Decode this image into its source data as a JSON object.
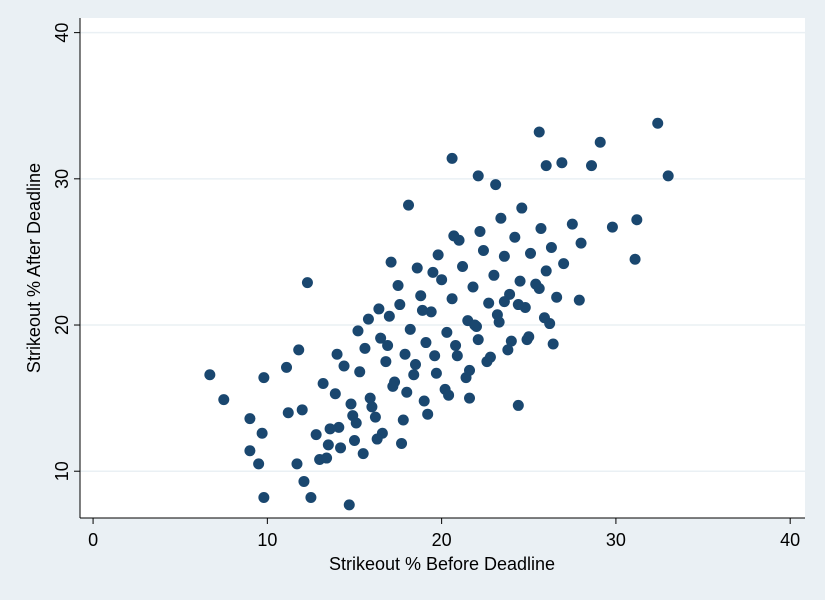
{
  "chart_data": {
    "type": "scatter",
    "x_label": "Strikeout % Before Deadline",
    "y_label": "Strikeout % After Deadline",
    "color": "#1a476f",
    "xlim": [
      -0.75,
      40.85
    ],
    "ylim": [
      6.8,
      41
    ],
    "xticks": [
      0,
      10,
      20,
      30,
      40
    ],
    "yticks": [
      10,
      20,
      30,
      40
    ],
    "grid": true,
    "x": [
      6.7,
      7.5,
      9.0,
      9.0,
      9.8,
      9.7,
      9.5,
      9.8,
      11.1,
      11.2,
      11.8,
      11.7,
      12.3,
      12.5,
      14.7,
      12.1,
      20.6,
      18.1,
      25.6,
      29.1,
      32.4,
      33.0,
      31.2,
      29.8,
      31.1,
      26.4,
      24.4,
      21.6,
      27.9,
      26.9,
      26.0,
      28.6,
      23.1,
      22.1,
      12.0,
      12.8,
      13.2,
      13.5,
      13.9,
      14.1,
      14.4,
      14.8,
      15.0,
      15.3,
      15.6,
      15.9,
      16.2,
      16.5,
      16.8,
      17.0,
      17.3,
      17.6,
      17.9,
      18.2,
      18.5,
      18.8,
      19.1,
      19.4,
      19.7,
      20.0,
      20.3,
      20.6,
      20.9,
      21.2,
      21.5,
      21.8,
      22.1,
      22.4,
      22.7,
      23.0,
      23.3,
      23.6,
      23.9,
      24.2,
      24.5,
      24.8,
      25.1,
      25.4,
      25.7,
      26.0,
      26.3,
      26.6,
      27.0,
      27.5,
      28.0,
      13.0,
      13.6,
      14.2,
      14.9,
      15.5,
      16.0,
      16.6,
      17.2,
      17.8,
      18.4,
      19.0,
      19.6,
      20.2,
      20.8,
      21.4,
      22.0,
      22.6,
      23.2,
      23.8,
      24.4,
      25.0,
      25.6,
      26.2,
      14.0,
      15.2,
      16.4,
      17.5,
      18.6,
      19.8,
      21.0,
      22.2,
      23.4,
      24.6,
      15.8,
      16.9,
      18.0,
      19.2,
      20.4,
      21.6,
      22.8,
      24.0,
      16.3,
      17.7,
      19.5,
      20.7,
      18.9,
      21.9,
      23.6,
      17.1,
      15.1,
      13.4,
      24.9,
      25.9
    ],
    "y": [
      16.6,
      14.9,
      13.6,
      11.4,
      16.4,
      12.6,
      10.5,
      8.2,
      17.1,
      14.0,
      18.3,
      10.5,
      22.9,
      8.2,
      7.7,
      9.3,
      31.4,
      28.2,
      33.2,
      32.5,
      33.8,
      30.2,
      27.2,
      26.7,
      24.5,
      18.7,
      14.5,
      15.0,
      21.7,
      31.1,
      30.9,
      30.9,
      29.6,
      30.2,
      14.2,
      12.5,
      16.0,
      11.8,
      15.3,
      13.0,
      17.2,
      14.6,
      12.1,
      16.8,
      18.4,
      15.0,
      13.7,
      19.1,
      17.5,
      20.6,
      16.1,
      21.4,
      18.0,
      19.7,
      17.3,
      22.0,
      18.8,
      20.9,
      16.7,
      23.1,
      19.5,
      21.8,
      17.9,
      24.0,
      20.3,
      22.6,
      19.0,
      25.1,
      21.5,
      23.4,
      20.2,
      24.7,
      22.1,
      26.0,
      23.0,
      21.2,
      24.9,
      22.8,
      26.6,
      23.7,
      25.3,
      21.9,
      24.2,
      26.9,
      25.6,
      10.8,
      12.9,
      11.6,
      13.8,
      11.2,
      14.4,
      12.6,
      15.8,
      13.5,
      16.6,
      14.8,
      17.9,
      15.6,
      18.6,
      16.4,
      19.9,
      17.5,
      20.7,
      18.3,
      21.4,
      19.2,
      22.5,
      20.1,
      18.0,
      19.6,
      21.1,
      22.7,
      23.9,
      24.8,
      25.8,
      26.4,
      27.3,
      28.0,
      20.4,
      18.6,
      15.4,
      13.9,
      15.2,
      16.9,
      17.8,
      18.9,
      12.2,
      11.9,
      23.6,
      26.1,
      21.0,
      20.0,
      21.6,
      24.3,
      13.3,
      10.9,
      19.0,
      20.5
    ]
  }
}
